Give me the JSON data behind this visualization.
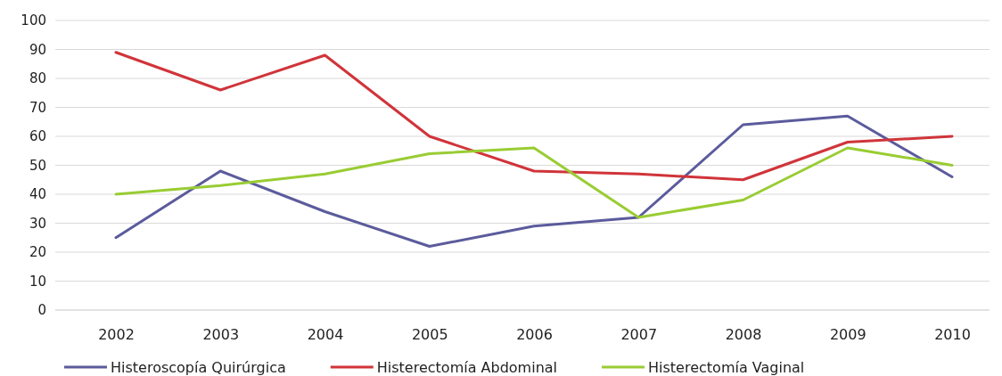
{
  "chart_data": {
    "type": "line",
    "categories": [
      "2002",
      "2003",
      "2004",
      "2005",
      "2006",
      "2007",
      "2008",
      "2009",
      "2010"
    ],
    "series": [
      {
        "name": "Histeroscopía Quirúrgica",
        "color": "#5b5b9c",
        "values": [
          25,
          48,
          34,
          22,
          29,
          32,
          64,
          67,
          46
        ]
      },
      {
        "name": "Histerectomía Abdominal",
        "color": "#d0343a",
        "values": [
          89,
          76,
          88,
          60,
          48,
          47,
          45,
          58,
          60
        ]
      },
      {
        "name": "Histerectomía Vaginal",
        "color": "#99cc33",
        "values": [
          40,
          43,
          47,
          54,
          56,
          32,
          38,
          56,
          50
        ]
      }
    ],
    "ylim": [
      0,
      100
    ],
    "yticks": [
      0,
      10,
      20,
      30,
      40,
      50,
      60,
      70,
      80,
      90,
      100
    ],
    "grid": "y",
    "legend": "bottom",
    "marker": "none",
    "line_style": "solid"
  }
}
